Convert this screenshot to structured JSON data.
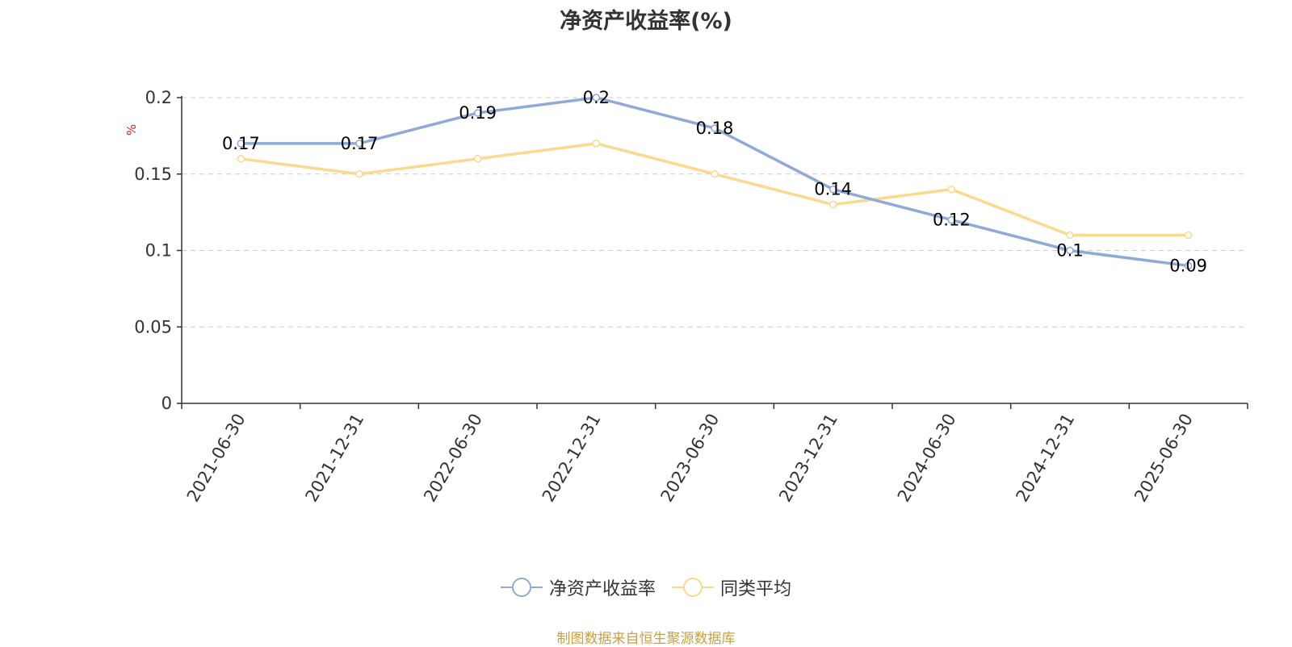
{
  "chart_data": {
    "type": "line",
    "title": "净资产收益率(%)",
    "ylabel": "%",
    "xlabel": "",
    "ylim": [
      0,
      0.2
    ],
    "yticks": [
      "0",
      "0.05",
      "0.1",
      "0.15",
      "0.2"
    ],
    "grid": true,
    "legend_position": "bottom",
    "categories": [
      "2021-06-30",
      "2021-12-31",
      "2022-06-30",
      "2022-12-31",
      "2023-06-30",
      "2023-12-31",
      "2024-06-30",
      "2024-12-31",
      "2025-06-30"
    ],
    "series": [
      {
        "name": "净资产收益率",
        "color": "#8eaad8",
        "values": [
          0.17,
          0.17,
          0.19,
          0.2,
          0.18,
          0.14,
          0.12,
          0.1,
          0.09
        ],
        "labels": [
          "0.17",
          "0.17",
          "0.19",
          "0.2",
          "0.18",
          "0.14",
          "0.12",
          "0.1",
          "0.09"
        ]
      },
      {
        "name": "同类平均",
        "color": "#fbd98e",
        "values": [
          0.16,
          0.15,
          0.16,
          0.17,
          0.15,
          0.13,
          0.14,
          0.11,
          0.11
        ]
      }
    ]
  },
  "source_note": "制图数据来自恒生聚源数据库"
}
